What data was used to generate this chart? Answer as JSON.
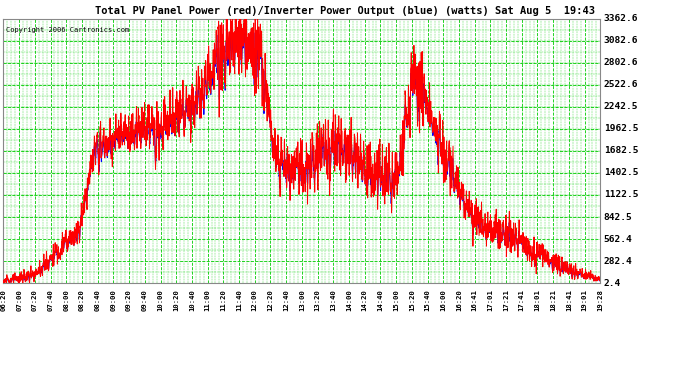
{
  "title": "Total PV Panel Power (red)/Inverter Power Output (blue) (watts) Sat Aug 5  19:43",
  "copyright": "Copyright 2006 Cartronics.com",
  "background_color": "#ffffff",
  "plot_background": "#ffffff",
  "grid_color": "#00cc00",
  "line_color_pv": "red",
  "line_color_inv": "blue",
  "yticks": [
    2.4,
    282.4,
    562.4,
    842.5,
    1122.5,
    1402.5,
    1682.5,
    1962.5,
    2242.5,
    2522.6,
    2802.6,
    3082.6,
    3362.6
  ],
  "ylim": [
    2.4,
    3362.6
  ],
  "xtick_labels": [
    "06:20",
    "07:00",
    "07:20",
    "07:40",
    "08:00",
    "08:20",
    "08:40",
    "09:00",
    "09:20",
    "09:40",
    "10:00",
    "10:20",
    "10:40",
    "11:00",
    "11:20",
    "11:40",
    "12:00",
    "12:20",
    "12:40",
    "13:00",
    "13:20",
    "13:40",
    "14:00",
    "14:20",
    "14:40",
    "15:00",
    "15:20",
    "15:40",
    "16:00",
    "16:20",
    "16:41",
    "17:01",
    "17:21",
    "17:41",
    "18:01",
    "18:21",
    "18:41",
    "19:01",
    "19:28"
  ]
}
